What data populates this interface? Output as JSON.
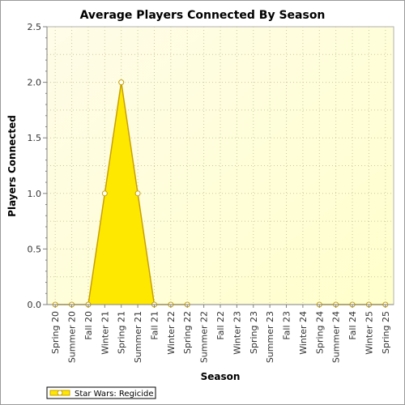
{
  "chart_data": {
    "type": "area",
    "title": "Average Players Connected By Season",
    "xlabel": "Season",
    "ylabel": "Players Connected",
    "categories": [
      "Spring 20",
      "Summer 20",
      "Fall 20",
      "Winter 21",
      "Spring 21",
      "Summer 21",
      "Fall 21",
      "Winter 22",
      "Spring 22",
      "Summer 22",
      "Fall 22",
      "Winter 23",
      "Spring 23",
      "Summer 23",
      "Fall 23",
      "Winter 24",
      "Spring 24",
      "Summer 24",
      "Fall 24",
      "Winter 25",
      "Spring 25"
    ],
    "series": [
      {
        "name": "Star Wars: Regicide",
        "values": [
          0,
          0,
          0,
          1,
          2,
          1,
          0,
          0,
          0,
          null,
          null,
          null,
          null,
          null,
          null,
          null,
          0,
          0,
          0,
          0,
          0
        ]
      }
    ],
    "ylim": [
      0,
      2.5
    ],
    "yticks": [
      "0.0",
      "0.5",
      "1.0",
      "1.5",
      "2.0",
      "2.5"
    ],
    "grid": true,
    "legend_position": "bottom-left",
    "colors": {
      "fill": "#ffe800",
      "line": "#c8a000",
      "marker_fill": "#ffffff",
      "plot_background_top": "#fffce8",
      "plot_background_bottom": "#ffffd0",
      "grid": "#c8c8a0"
    }
  }
}
